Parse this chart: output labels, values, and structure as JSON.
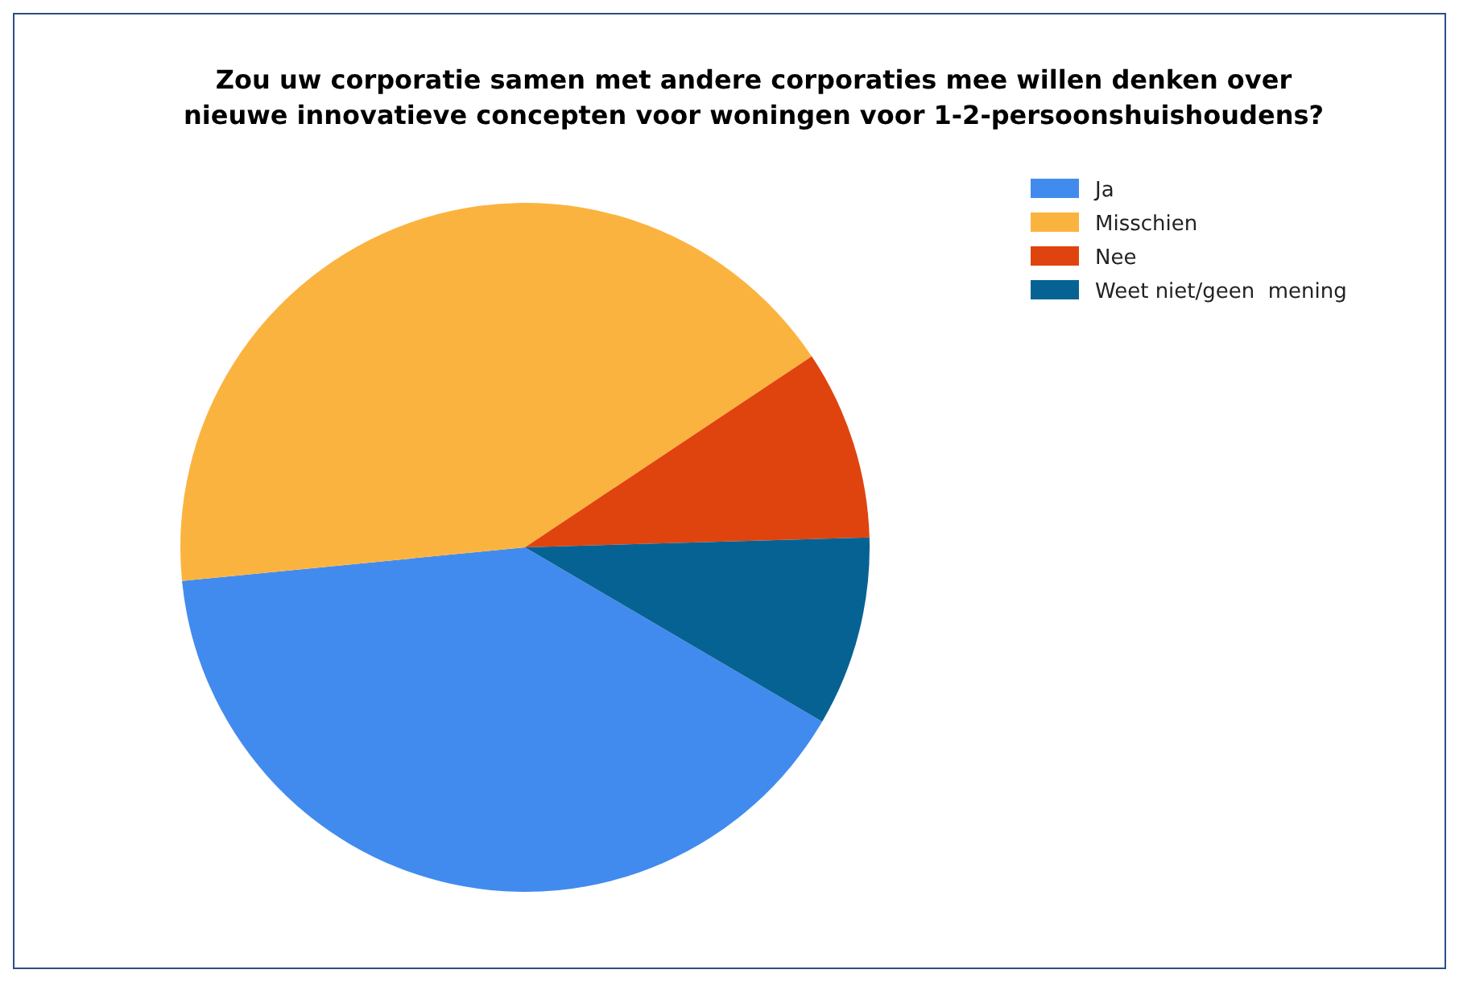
{
  "chart_data": {
    "type": "pie",
    "title": "Zou uw corporatie samen met andere corporaties mee willen denken over nieuwe innovatieve concepten voor woningen voor 1-2-persoonshuishoudens?",
    "categories": [
      "Ja",
      "Misschien",
      "Nee",
      "Weet niet/geen  mening"
    ],
    "values": [
      40,
      42.2,
      8.9,
      8.9
    ],
    "colors": [
      "#428bee",
      "#fbb340",
      "#e0440e",
      "#076294"
    ],
    "legend": "top right"
  }
}
